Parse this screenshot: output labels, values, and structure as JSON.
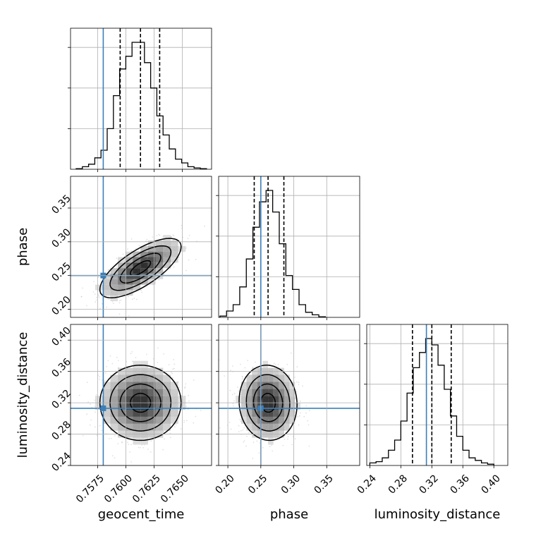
{
  "chart_data": {
    "type": "corner",
    "parameters": [
      "geocent_time",
      "phase",
      "luminosity_distance"
    ],
    "truths": {
      "geocent_time": 0.758,
      "phase": 0.25,
      "luminosity_distance": 0.313
    },
    "quantiles": {
      "geocent_time": [
        0.7595,
        0.7613,
        0.763
      ],
      "phase": [
        0.24,
        0.261,
        0.285
      ],
      "luminosity_distance": [
        0.295,
        0.32,
        0.345
      ]
    },
    "axes": {
      "geocent_time": {
        "xlim": [
          0.7551,
          0.7676
        ],
        "ticks": [
          0.7575,
          0.76,
          0.7625,
          0.765
        ],
        "tick_labels": [
          "0.7575",
          "0.7600",
          "0.7625",
          "0.7650"
        ]
      },
      "phase": {
        "xlim": [
          0.186,
          0.4
        ],
        "ticks": [
          0.2,
          0.25,
          0.3,
          0.35
        ],
        "tick_labels": [
          "0.20",
          "0.25",
          "0.30",
          "0.35"
        ],
        "ylim": [
          0.188,
          0.397
        ],
        "yticks": [
          0.2,
          0.25,
          0.3,
          0.35
        ],
        "ytick_labels": [
          "0.20",
          "0.25",
          "0.30",
          "0.35"
        ]
      },
      "luminosity_distance": {
        "xlim": [
          0.236,
          0.418
        ],
        "ticks": [
          0.24,
          0.28,
          0.32,
          0.36,
          0.4
        ],
        "tick_labels": [
          "0.24",
          "0.28",
          "0.32",
          "0.36",
          "0.40"
        ],
        "ylim": [
          0.24,
          0.42
        ],
        "yticks": [
          0.24,
          0.28,
          0.32,
          0.36,
          0.4
        ],
        "ytick_labels": [
          "0.24",
          "0.28",
          "0.32",
          "0.36",
          "0.40"
        ]
      }
    },
    "histograms": {
      "geocent_time": {
        "edges": [
          0.7556,
          0.75615,
          0.7567,
          0.75725,
          0.7578,
          0.75835,
          0.7589,
          0.75945,
          0.76,
          0.76055,
          0.7611,
          0.76165,
          0.7622,
          0.76275,
          0.7633,
          0.76385,
          0.7644,
          0.76495,
          0.7655,
          0.76605,
          0.7666,
          0.76715
        ],
        "counts": [
          0.005,
          0.02,
          0.04,
          0.09,
          0.15,
          0.32,
          0.58,
          0.79,
          0.89,
          1.0,
          1.0,
          0.84,
          0.64,
          0.42,
          0.27,
          0.16,
          0.08,
          0.05,
          0.02,
          0.01,
          0.005
        ]
      },
      "phase": {
        "edges": [
          0.188,
          0.198,
          0.208,
          0.218,
          0.228,
          0.238,
          0.248,
          0.258,
          0.268,
          0.278,
          0.288,
          0.298,
          0.308,
          0.318,
          0.328,
          0.338,
          0.348
        ],
        "counts": [
          0.01,
          0.05,
          0.1,
          0.24,
          0.46,
          0.71,
          0.91,
          1.0,
          0.83,
          0.58,
          0.33,
          0.22,
          0.1,
          0.04,
          0.02,
          0.005
        ]
      },
      "luminosity_distance": {
        "edges": [
          0.24,
          0.248,
          0.256,
          0.264,
          0.272,
          0.28,
          0.288,
          0.296,
          0.304,
          0.312,
          0.32,
          0.328,
          0.336,
          0.344,
          0.352,
          0.36,
          0.368,
          0.376,
          0.384,
          0.392,
          0.4
        ],
        "counts": [
          0.02,
          0.03,
          0.06,
          0.12,
          0.2,
          0.35,
          0.57,
          0.77,
          0.89,
          1.0,
          0.95,
          0.79,
          0.6,
          0.39,
          0.23,
          0.12,
          0.06,
          0.04,
          0.02,
          0.01
        ]
      }
    },
    "joint_2d": [
      {
        "x": "geocent_time",
        "y": "phase",
        "center": [
          0.7613,
          0.261
        ],
        "sd": [
          0.0018,
          0.022
        ],
        "corr": 0.72
      },
      {
        "x": "geocent_time",
        "y": "luminosity_distance",
        "center": [
          0.7613,
          0.32
        ],
        "sd": [
          0.0018,
          0.024
        ],
        "corr": 0.0
      },
      {
        "x": "phase",
        "y": "luminosity_distance",
        "center": [
          0.261,
          0.32
        ],
        "sd": [
          0.022,
          0.024
        ],
        "corr": -0.05
      }
    ],
    "colors": {
      "truth": "#3c7fb8",
      "line": "#000000",
      "grid": "#b0b0b0",
      "points": "#888888"
    }
  }
}
